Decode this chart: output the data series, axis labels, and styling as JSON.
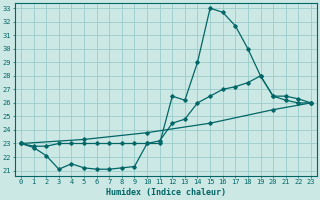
{
  "xlabel": "Humidex (Indice chaleur)",
  "bg_color": "#cce8e4",
  "line_color": "#006666",
  "grid_color": "#99cccc",
  "xlim": [
    -0.5,
    23.5
  ],
  "ylim": [
    20.6,
    33.4
  ],
  "yticks": [
    21,
    22,
    23,
    24,
    25,
    26,
    27,
    28,
    29,
    30,
    31,
    32,
    33
  ],
  "xticks": [
    0,
    1,
    2,
    3,
    4,
    5,
    6,
    7,
    8,
    9,
    10,
    11,
    12,
    13,
    14,
    15,
    16,
    17,
    18,
    19,
    20,
    21,
    22,
    23
  ],
  "series1": [
    [
      0,
      23
    ],
    [
      1,
      22.7
    ],
    [
      2,
      22.1
    ],
    [
      3,
      21.1
    ],
    [
      4,
      21.5
    ],
    [
      5,
      21.2
    ],
    [
      6,
      21.1
    ],
    [
      7,
      21.1
    ],
    [
      8,
      21.2
    ],
    [
      9,
      21.3
    ],
    [
      10,
      23.0
    ],
    [
      11,
      23.0
    ],
    [
      12,
      26.5
    ],
    [
      13,
      26.2
    ],
    [
      14,
      29.0
    ],
    [
      15,
      33.0
    ],
    [
      16,
      32.7
    ],
    [
      17,
      31.7
    ],
    [
      18,
      30.0
    ],
    [
      19,
      28.0
    ],
    [
      20,
      26.5
    ],
    [
      21,
      26.2
    ],
    [
      22,
      26.0
    ],
    [
      23,
      26.0
    ]
  ],
  "series2": [
    [
      0,
      23
    ],
    [
      1,
      22.8
    ],
    [
      2,
      22.8
    ],
    [
      3,
      23.0
    ],
    [
      4,
      23.0
    ],
    [
      5,
      23.0
    ],
    [
      6,
      23.0
    ],
    [
      7,
      23.0
    ],
    [
      8,
      23.0
    ],
    [
      9,
      23.0
    ],
    [
      10,
      23.0
    ],
    [
      11,
      23.2
    ],
    [
      12,
      24.5
    ],
    [
      13,
      24.8
    ],
    [
      14,
      26.0
    ],
    [
      15,
      26.5
    ],
    [
      16,
      27.0
    ],
    [
      17,
      27.2
    ],
    [
      18,
      27.5
    ],
    [
      19,
      28.0
    ],
    [
      20,
      26.5
    ],
    [
      21,
      26.5
    ],
    [
      22,
      26.3
    ],
    [
      23,
      26.0
    ]
  ],
  "series3": [
    [
      0,
      23
    ],
    [
      5,
      23.3
    ],
    [
      10,
      23.8
    ],
    [
      15,
      24.5
    ],
    [
      20,
      25.5
    ],
    [
      23,
      26.0
    ]
  ]
}
